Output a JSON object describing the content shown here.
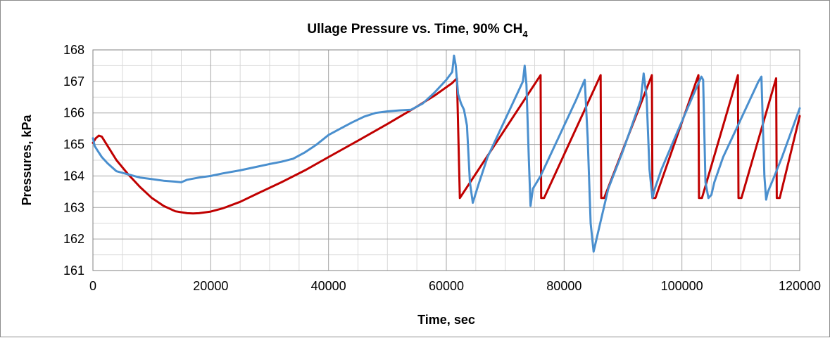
{
  "chart_data": {
    "type": "line",
    "title": "Ullage Pressure  vs. Time, 90% CH",
    "title_subscript": "4",
    "xlabel": "Time, sec",
    "ylabel": "Pressures, kPa",
    "xlim": [
      0,
      120000
    ],
    "ylim": [
      161,
      168
    ],
    "x_ticks": [
      0,
      20000,
      40000,
      60000,
      80000,
      100000,
      120000
    ],
    "y_ticks": [
      161,
      162,
      163,
      164,
      165,
      166,
      167,
      168
    ],
    "x_tick_labels": [
      "0",
      "20000",
      "40000",
      "60000",
      "80000",
      "100000",
      "120000"
    ],
    "y_tick_labels": [
      "161",
      "162",
      "163",
      "164",
      "165",
      "166",
      "167",
      "168"
    ],
    "grid": true,
    "minor_grid": true,
    "legend": "none",
    "series": [
      {
        "color": "#c00000",
        "x": [
          0,
          500,
          1000,
          1500,
          2500,
          4000,
          6000,
          8000,
          10000,
          12000,
          14000,
          16000,
          17000,
          18000,
          20000,
          22000,
          25000,
          28000,
          32000,
          36000,
          40000,
          45000,
          50000,
          55000,
          58000,
          61000,
          61800,
          62300,
          76000,
          76100,
          76600,
          86200,
          86300,
          86800,
          94900,
          95000,
          95500,
          102800,
          102900,
          103400,
          109500,
          109600,
          110100,
          116000,
          116100,
          116600,
          120000
        ],
        "y": [
          165.05,
          165.2,
          165.28,
          165.25,
          164.95,
          164.5,
          164.05,
          163.65,
          163.3,
          163.05,
          162.88,
          162.82,
          162.81,
          162.82,
          162.87,
          162.97,
          163.18,
          163.45,
          163.8,
          164.18,
          164.6,
          165.12,
          165.65,
          166.2,
          166.55,
          166.95,
          167.1,
          163.3,
          167.2,
          163.3,
          163.3,
          167.2,
          163.3,
          163.3,
          167.2,
          163.3,
          163.3,
          167.2,
          163.3,
          163.3,
          167.2,
          163.3,
          163.3,
          167.1,
          163.3,
          163.3,
          165.9
        ]
      },
      {
        "color": "#4a8fce",
        "x": [
          0,
          300,
          800,
          1500,
          2500,
          4000,
          6000,
          8000,
          10000,
          12000,
          14000,
          15000,
          16000,
          18000,
          20000,
          22000,
          25000,
          28000,
          30000,
          32000,
          34000,
          36000,
          38000,
          40000,
          42000,
          44000,
          46000,
          48000,
          50000,
          52000,
          54000,
          56000,
          58000,
          60000,
          61000,
          61300,
          61600,
          62000,
          62500,
          63000,
          63500,
          64000,
          64500,
          65500,
          67000,
          70000,
          73000,
          73300,
          73600,
          74000,
          74300,
          74700,
          76000,
          79000,
          82000,
          83500,
          84000,
          84500,
          85000,
          86000,
          87500,
          90000,
          93000,
          93500,
          94000,
          94500,
          95000,
          95400,
          96500,
          99000,
          102000,
          103300,
          103600,
          104000,
          104500,
          105000,
          105500,
          107000,
          110000,
          113000,
          113500,
          114000,
          114300,
          114600,
          115500,
          117000,
          120000
        ],
        "y": [
          165.2,
          164.95,
          164.8,
          164.6,
          164.4,
          164.15,
          164.05,
          163.95,
          163.9,
          163.85,
          163.82,
          163.8,
          163.88,
          163.95,
          164.0,
          164.08,
          164.18,
          164.3,
          164.38,
          164.45,
          164.55,
          164.75,
          165.0,
          165.3,
          165.5,
          165.7,
          165.88,
          166.0,
          166.05,
          166.08,
          166.1,
          166.3,
          166.65,
          167.05,
          167.3,
          167.82,
          167.5,
          166.6,
          166.3,
          166.1,
          165.6,
          163.8,
          163.15,
          163.75,
          164.6,
          165.8,
          167.0,
          167.5,
          166.9,
          164.6,
          163.05,
          163.6,
          164.0,
          165.2,
          166.4,
          167.05,
          165.2,
          162.5,
          161.6,
          162.4,
          163.6,
          164.8,
          166.4,
          167.25,
          166.5,
          164.2,
          163.3,
          163.6,
          164.2,
          165.3,
          166.6,
          167.15,
          167.05,
          163.8,
          163.3,
          163.4,
          163.8,
          164.6,
          165.8,
          167.0,
          167.15,
          164.0,
          163.25,
          163.5,
          163.9,
          164.6,
          166.15
        ]
      }
    ]
  }
}
